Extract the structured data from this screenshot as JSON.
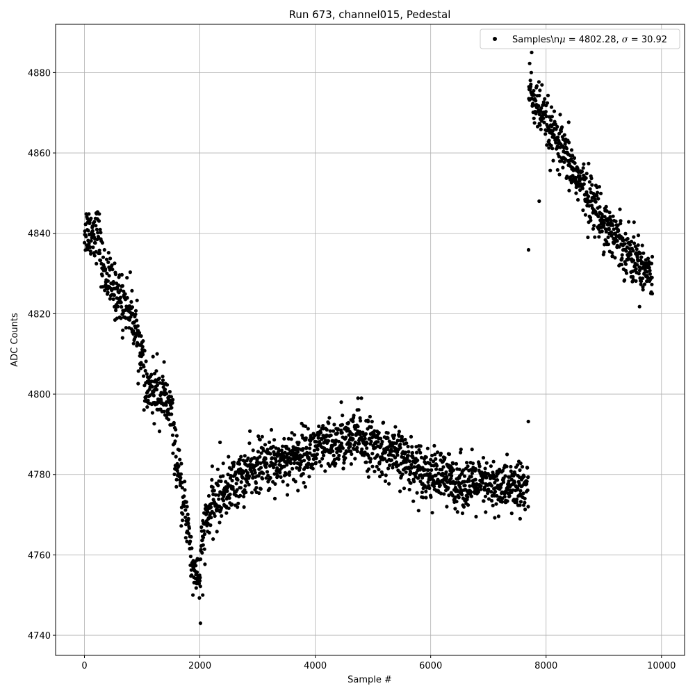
{
  "chart_data": {
    "type": "scatter",
    "title": "Run 673, channel015, Pedestal",
    "xlabel": "Sample #",
    "ylabel": "ADC Counts",
    "xlim": [
      -500,
      10400
    ],
    "ylim": [
      4735,
      4892
    ],
    "xticks": [
      0,
      2000,
      4000,
      6000,
      8000,
      10000
    ],
    "yticks": [
      4740,
      4760,
      4780,
      4800,
      4820,
      4840,
      4860,
      4880
    ],
    "xtick_labels": [
      "0",
      "2000",
      "4000",
      "6000",
      "8000",
      "10000"
    ],
    "ytick_labels": [
      "4740",
      "4760",
      "4780",
      "4800",
      "4820",
      "4840",
      "4860",
      "4880"
    ],
    "grid": true,
    "legend": {
      "placement": "top-right",
      "label_prefix": "Samples\\n",
      "mu_value": " = 4802.28, ",
      "sigma_value": " = 30.92",
      "mu_symbol": "μ",
      "sigma_symbol": "σ"
    },
    "marker_color": "#000000",
    "series": [
      {
        "name": "Samples\\nμ = 4802.28, σ = 30.92",
        "x_range": [
          0,
          9840
        ],
        "trend": [
          {
            "x": 0,
            "y": 4841
          },
          {
            "x": 250,
            "y": 4840
          },
          {
            "x": 300,
            "y": 4832
          },
          {
            "x": 500,
            "y": 4826
          },
          {
            "x": 800,
            "y": 4821
          },
          {
            "x": 1000,
            "y": 4810
          },
          {
            "x": 1050,
            "y": 4801
          },
          {
            "x": 1300,
            "y": 4800
          },
          {
            "x": 1500,
            "y": 4796
          },
          {
            "x": 1580,
            "y": 4785
          },
          {
            "x": 1700,
            "y": 4773
          },
          {
            "x": 1800,
            "y": 4768
          },
          {
            "x": 1850,
            "y": 4758
          },
          {
            "x": 2000,
            "y": 4754
          },
          {
            "x": 2050,
            "y": 4765
          },
          {
            "x": 2200,
            "y": 4772
          },
          {
            "x": 2600,
            "y": 4778
          },
          {
            "x": 3000,
            "y": 4782
          },
          {
            "x": 3500,
            "y": 4784
          },
          {
            "x": 4000,
            "y": 4786
          },
          {
            "x": 4500,
            "y": 4788
          },
          {
            "x": 4800,
            "y": 4789
          },
          {
            "x": 5000,
            "y": 4787
          },
          {
            "x": 5500,
            "y": 4784
          },
          {
            "x": 6000,
            "y": 4780
          },
          {
            "x": 6500,
            "y": 4778
          },
          {
            "x": 7000,
            "y": 4777
          },
          {
            "x": 7690,
            "y": 4777
          },
          {
            "x": 7700,
            "y": 4876
          },
          {
            "x": 8000,
            "y": 4867
          },
          {
            "x": 8500,
            "y": 4855
          },
          {
            "x": 9000,
            "y": 4843
          },
          {
            "x": 9500,
            "y": 4834
          },
          {
            "x": 9840,
            "y": 4830
          }
        ],
        "spread": 3.2,
        "outliers": [
          {
            "x": 2010,
            "y": 4743
          },
          {
            "x": 4450,
            "y": 4798
          },
          {
            "x": 4800,
            "y": 4799
          },
          {
            "x": 4740,
            "y": 4799
          },
          {
            "x": 2350,
            "y": 4788
          },
          {
            "x": 7880,
            "y": 4848
          },
          {
            "x": 7750,
            "y": 4885
          },
          {
            "x": 7690,
            "y": 4772
          },
          {
            "x": 7550,
            "y": 4769
          },
          {
            "x": 3300,
            "y": 4774
          },
          {
            "x": 3700,
            "y": 4776
          },
          {
            "x": 6280,
            "y": 4772
          },
          {
            "x": 9840,
            "y": 4825
          },
          {
            "x": 1260,
            "y": 4810
          },
          {
            "x": 1380,
            "y": 4808
          },
          {
            "x": 660,
            "y": 4814
          },
          {
            "x": 1880,
            "y": 4750
          },
          {
            "x": 2050,
            "y": 4750
          }
        ]
      }
    ]
  }
}
